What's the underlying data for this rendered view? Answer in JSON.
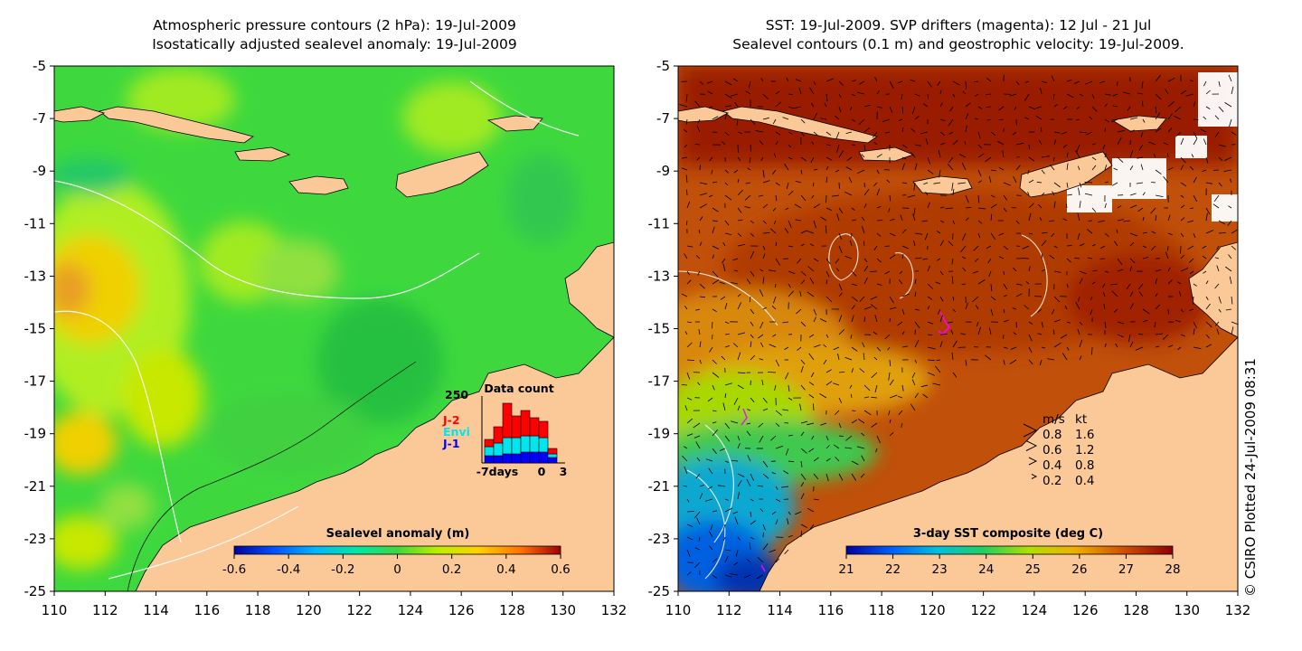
{
  "left_panel": {
    "title_line1": "Atmospheric pressure contours (2 hPa): 19-Jul-2009",
    "title_line2": "Isostatically adjusted sealevel anomaly: 19-Jul-2009",
    "colorbar": {
      "label": "Sealevel anomaly (m)",
      "ticks": [
        "-0.6",
        "-0.4",
        "-0.2",
        "0",
        "0.2",
        "0.4",
        "0.6"
      ]
    },
    "inset": {
      "title": "Data count",
      "y_max_label": "250",
      "x_labels": [
        "-7days",
        "0",
        "3"
      ],
      "legend": [
        {
          "label": "J-2",
          "color": "#ff0000"
        },
        {
          "label": "Envi",
          "color": "#00e5ee"
        },
        {
          "label": "J-1",
          "color": "#0000ff"
        }
      ]
    }
  },
  "right_panel": {
    "title_line1": "SST: 19-Jul-2009. SVP drifters (magenta): 12 Jul - 21 Jul",
    "title_line2": "Sealevel contours (0.1 m) and geostrophic velocity: 19-Jul-2009.",
    "colorbar": {
      "label": "3-day SST composite (deg C)",
      "ticks": [
        "21",
        "22",
        "23",
        "24",
        "25",
        "26",
        "27",
        "28"
      ]
    },
    "velocity_legend": {
      "header_ms": "m/s",
      "header_kt": "kt",
      "rows": [
        {
          "ms": "0.8",
          "kt": "1.6"
        },
        {
          "ms": "0.6",
          "kt": "1.2"
        },
        {
          "ms": "0.4",
          "kt": "0.8"
        },
        {
          "ms": "0.2",
          "kt": "0.4"
        }
      ]
    }
  },
  "axes": {
    "x_ticks": [
      "110",
      "112",
      "114",
      "116",
      "118",
      "120",
      "122",
      "124",
      "126",
      "128",
      "130",
      "132"
    ],
    "y_ticks": [
      "-5",
      "-7",
      "-9",
      "-11",
      "-13",
      "-15",
      "-17",
      "-19",
      "-21",
      "-23",
      "-25"
    ]
  },
  "credit": "© CSIRO Plotted 24-Jul-2009 08:31",
  "colors": {
    "land": "#fbc898",
    "sla_background": "#3ed83e",
    "sst_warm": "#b43a08",
    "sst_cold": "#1e7be0"
  }
}
